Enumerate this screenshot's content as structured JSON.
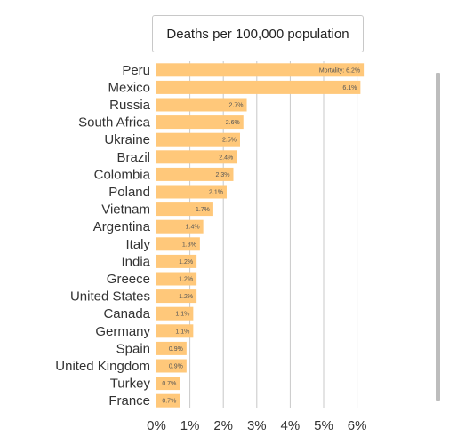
{
  "chart_data": {
    "type": "bar",
    "orientation": "horizontal",
    "title": "Deaths per 100,000 population",
    "categories": [
      "Peru",
      "Mexico",
      "Russia",
      "South Africa",
      "Ukraine",
      "Brazil",
      "Colombia",
      "Poland",
      "Vietnam",
      "Argentina",
      "Italy",
      "India",
      "Greece",
      "United States",
      "Canada",
      "Germany",
      "Spain",
      "United Kingdom",
      "Turkey",
      "France"
    ],
    "values": [
      6.2,
      6.1,
      2.7,
      2.6,
      2.5,
      2.4,
      2.3,
      2.1,
      1.7,
      1.4,
      1.3,
      1.2,
      1.2,
      1.2,
      1.1,
      1.1,
      0.9,
      0.9,
      0.7,
      0.7
    ],
    "data_labels": [
      "Mortality: 6.2%",
      "6.1%",
      "2.7%",
      "2.6%",
      "2.5%",
      "2.4%",
      "2.3%",
      "2.1%",
      "1.7%",
      "1.4%",
      "1.3%",
      "1.2%",
      "1.2%",
      "1.2%",
      "1.1%",
      "1.1%",
      "0.9%",
      "0.9%",
      "0.7%",
      "0.7%"
    ],
    "x_ticks": [
      "0%",
      "1%",
      "2%",
      "3%",
      "4%",
      "5%",
      "6%"
    ],
    "xlim": [
      0,
      6.2
    ],
    "xlabel": "",
    "ylabel": "",
    "grid": true,
    "bar_color": "#ffc87a",
    "grid_color": "#c8c8c8"
  }
}
